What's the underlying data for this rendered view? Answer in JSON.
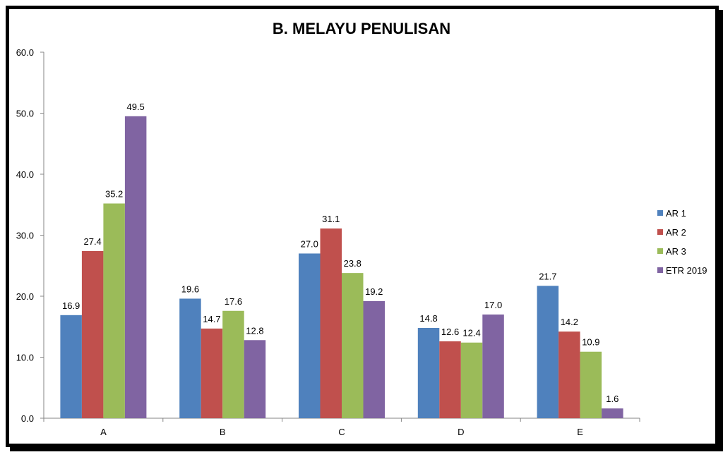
{
  "chart_data": {
    "type": "bar",
    "title": "B. MELAYU PENULISAN",
    "categories": [
      "A",
      "B",
      "C",
      "D",
      "E"
    ],
    "ylim": [
      0,
      60
    ],
    "yticks": [
      "0.0",
      "10.0",
      "20.0",
      "30.0",
      "40.0",
      "50.0",
      "60.0"
    ],
    "grid": false,
    "legend_position": "right",
    "series": [
      {
        "name": "AR 1",
        "color": "#4F81BD",
        "values": [
          16.9,
          19.6,
          27.0,
          14.8,
          21.7
        ],
        "labels": [
          "16.9",
          "19.6",
          "27.0",
          "14.8",
          "21.7"
        ]
      },
      {
        "name": "AR 2",
        "color": "#C0504D",
        "values": [
          27.4,
          14.7,
          31.1,
          12.6,
          14.2
        ],
        "labels": [
          "27.4",
          "14.7",
          "31.1",
          "12.6",
          "14.2"
        ]
      },
      {
        "name": "AR 3",
        "color": "#9BBB59",
        "values": [
          35.2,
          17.6,
          23.8,
          12.4,
          10.9
        ],
        "labels": [
          "35.2",
          "17.6",
          "23.8",
          "12.4",
          "10.9"
        ]
      },
      {
        "name": "ETR 2019",
        "color": "#8064A2",
        "values": [
          49.5,
          12.8,
          19.2,
          17.0,
          1.6
        ],
        "labels": [
          "49.5",
          "12.8",
          "19.2",
          "17.0",
          "1.6"
        ]
      }
    ]
  }
}
